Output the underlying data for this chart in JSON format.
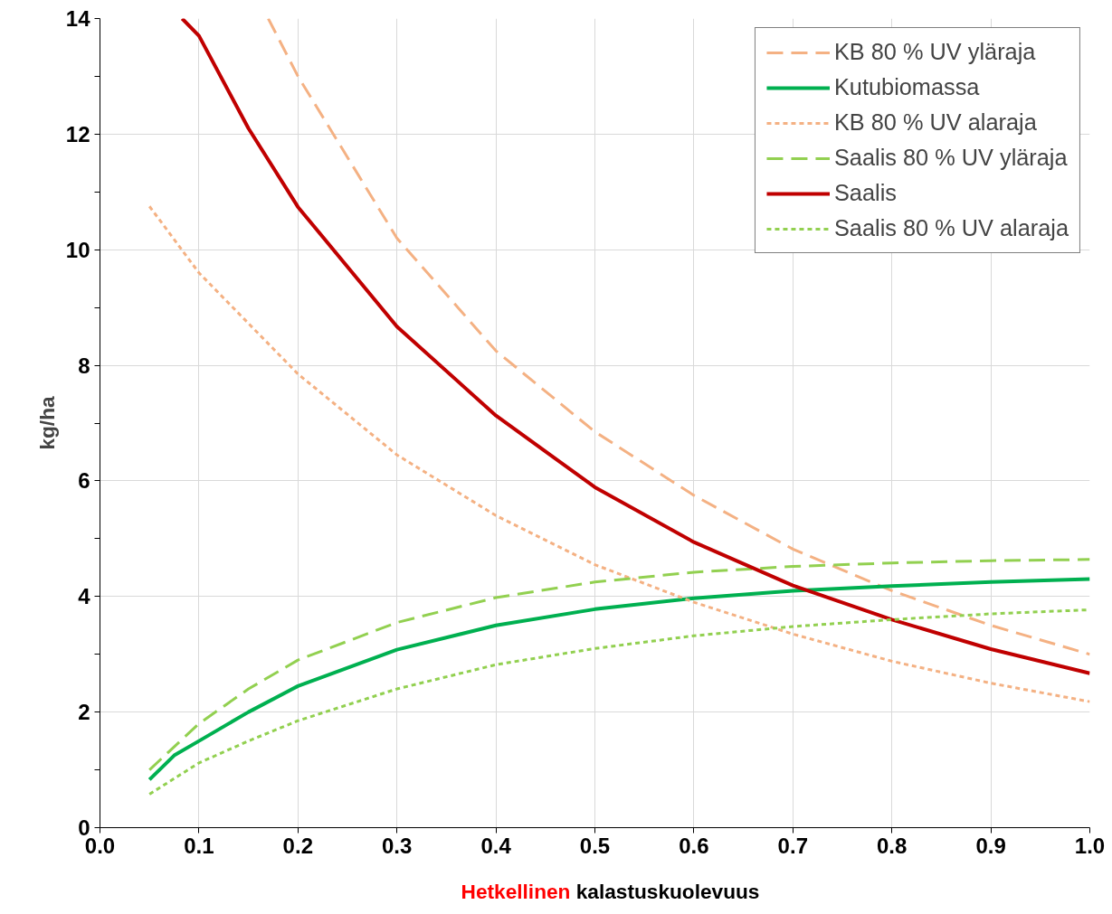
{
  "chart_data": {
    "type": "line",
    "xlabel": "Hetkellinen kalastuskuolevuus",
    "ylabel": "kg/ha",
    "xlim": [
      0,
      1
    ],
    "xticks": [
      {
        "value": 0,
        "label": "0.0"
      },
      {
        "value": 0.1,
        "label": "0.1"
      },
      {
        "value": 0.2,
        "label": "0.2"
      },
      {
        "value": 0.3,
        "label": "0.3"
      },
      {
        "value": 0.4,
        "label": "0.4"
      },
      {
        "value": 0.5,
        "label": "0.5"
      },
      {
        "value": 0.6,
        "label": "0.6"
      },
      {
        "value": 0.7,
        "label": "0.7"
      },
      {
        "value": 0.8,
        "label": "0.8"
      },
      {
        "value": 0.9,
        "label": "0.9"
      },
      {
        "value": 1,
        "label": "1.0"
      }
    ],
    "ylim": [
      0,
      14
    ],
    "yticks": [
      0,
      {
        "value": 1,
        "label": null
      },
      2,
      {
        "value": 3,
        "label": null
      },
      4,
      {
        "value": 5,
        "label": null
      },
      6,
      {
        "value": 7,
        "label": null
      },
      8,
      {
        "value": 9,
        "label": null
      },
      10,
      {
        "value": 11,
        "label": null
      },
      12,
      {
        "value": 13,
        "label": null
      },
      14
    ],
    "grid": true,
    "legend": "top right",
    "series": [
      {
        "name": "KB 80 % UV yläraja",
        "color": "#f4b183",
        "line_style": "dashed",
        "x": [
          0.17,
          0.2,
          0.3,
          0.4,
          0.5,
          0.6,
          0.7,
          0.8,
          0.9,
          1.0
        ],
        "values": [
          14,
          13.0,
          10.2,
          8.25,
          6.85,
          5.75,
          4.82,
          4.1,
          3.5,
          3.0
        ]
      },
      {
        "name": "Kutubiomassa",
        "color": "#00b050",
        "line_style": "solid",
        "x": [
          0.05,
          0.075,
          0.1,
          0.15,
          0.2,
          0.3,
          0.4,
          0.5,
          0.6,
          0.7,
          0.8,
          0.9,
          1.0
        ],
        "values": [
          0.83,
          1.25,
          1.5,
          2.0,
          2.45,
          3.08,
          3.5,
          3.78,
          3.97,
          4.1,
          4.18,
          4.25,
          4.3
        ]
      },
      {
        "name": "KB 80 % UV alaraja",
        "color": "#f4b183",
        "line_style": "dotted",
        "x": [
          0.05,
          0.1,
          0.2,
          0.3,
          0.4,
          0.5,
          0.6,
          0.7,
          0.8,
          0.9,
          1.0
        ],
        "values": [
          10.75,
          9.6,
          7.85,
          6.45,
          5.4,
          4.55,
          3.9,
          3.35,
          2.88,
          2.5,
          2.18
        ]
      },
      {
        "name": "Saalis 80 % UV yläraja",
        "color": "#92d050",
        "line_style": "dashed",
        "x": [
          0.05,
          0.1,
          0.15,
          0.2,
          0.3,
          0.4,
          0.5,
          0.6,
          0.7,
          0.8,
          0.9,
          1.0
        ],
        "values": [
          1.0,
          1.8,
          2.4,
          2.9,
          3.55,
          3.98,
          4.25,
          4.42,
          4.52,
          4.58,
          4.62,
          4.64
        ]
      },
      {
        "name": "Saalis",
        "color": "#c00000",
        "line_style": "solid",
        "x": [
          0.083,
          0.1,
          0.15,
          0.2,
          0.3,
          0.4,
          0.5,
          0.6,
          0.7,
          0.8,
          0.9,
          1.0
        ],
        "values": [
          14,
          13.7,
          12.1,
          10.74,
          8.67,
          7.13,
          5.89,
          4.94,
          4.19,
          3.6,
          3.09,
          2.67
        ]
      },
      {
        "name": "Saalis 80 % UV alaraja",
        "color": "#92d050",
        "line_style": "dotted",
        "x": [
          0.05,
          0.1,
          0.15,
          0.2,
          0.3,
          0.4,
          0.5,
          0.6,
          0.7,
          0.8,
          0.9,
          1.0
        ],
        "values": [
          0.58,
          1.12,
          1.5,
          1.85,
          2.4,
          2.82,
          3.1,
          3.32,
          3.48,
          3.6,
          3.7,
          3.77
        ]
      }
    ]
  }
}
